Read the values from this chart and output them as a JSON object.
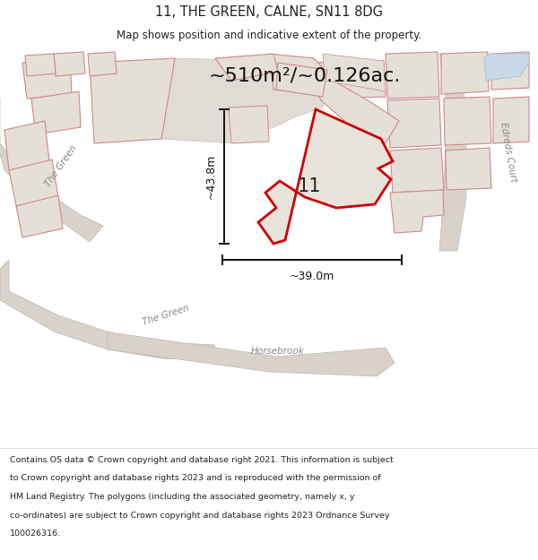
{
  "title": "11, THE GREEN, CALNE, SN11 8DG",
  "subtitle": "Map shows position and indicative extent of the property.",
  "area_text": "~510m²/~0.126ac.",
  "dim_vertical": "~43.8m",
  "dim_horizontal": "~39.0m",
  "property_label": "11",
  "footer_lines": [
    "Contains OS data © Crown copyright and database right 2021. This information is subject",
    "to Crown copyright and database rights 2023 and is reproduced with the permission of",
    "HM Land Registry. The polygons (including the associated geometry, namely x, y",
    "co-ordinates) are subject to Crown copyright and database rights 2023 Ordnance Survey",
    "100026316."
  ],
  "bg_color": "#ffffff",
  "map_bg": "#eeeae4",
  "road_fill": "#d8d2ca",
  "road_edge": "#c0b8b0",
  "parcel_fill": "#e4e0d8",
  "parcel_edge": "#d08888",
  "property_fill": "#e8e4dc",
  "property_edge": "#cc0000",
  "blue_fill": "#c8d8e8",
  "blue_edge": "#a0b8cc",
  "label_color": "#222222",
  "road_label_color": "#888888",
  "dim_color": "#111111"
}
